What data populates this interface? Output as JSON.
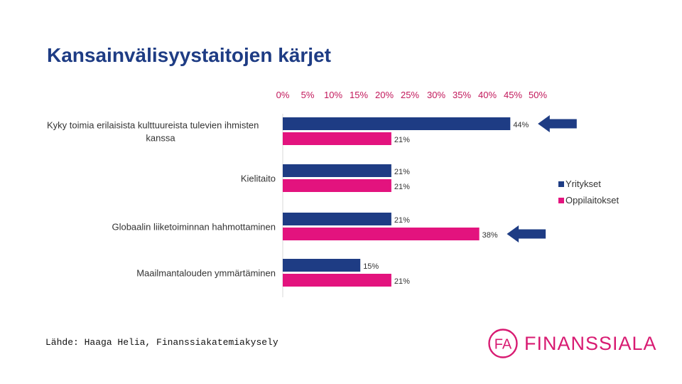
{
  "title": "Kansainvälisyystaitojen kärjet",
  "source": "Lähde: Haaga Helia, Finanssiakatemiakysely",
  "brand": {
    "name": "FINANSSIALA",
    "mark_letters": "FA"
  },
  "colors": {
    "yritykset": "#1e3c84",
    "oppilaitokset": "#e3137e",
    "title": "#1e3c84",
    "axis_text": "#c2185b",
    "arrow": "#1e3c84"
  },
  "chart_data": {
    "type": "bar",
    "orientation": "horizontal",
    "categories": [
      "Kyky toimia erilaisista kulttuureista tulevien ihmisten kanssa",
      "Kielitaito",
      "Globaalin liiketoiminnan hahmottaminen",
      "Maailmantalouden ymmärtäminen"
    ],
    "series": [
      {
        "name": "Yritykset",
        "values": [
          44,
          21,
          21,
          15
        ],
        "labels": [
          "44%",
          "21%",
          "21%",
          "15%"
        ]
      },
      {
        "name": "Oppilaitokset",
        "values": [
          21,
          21,
          38,
          21
        ],
        "labels": [
          "21%",
          "21%",
          "38%",
          "21%"
        ]
      }
    ],
    "xlim": [
      0,
      50
    ],
    "ticks": [
      "0%",
      "5%",
      "10%",
      "15%",
      "20%",
      "25%",
      "30%",
      "35%",
      "40%",
      "45%",
      "50%"
    ],
    "tick_values": [
      0,
      5,
      10,
      15,
      20,
      25,
      30,
      35,
      40,
      45,
      50
    ],
    "legend": [
      "Yritykset",
      "Oppilaitokset"
    ],
    "legend_position": "right",
    "highlighted_bars": [
      {
        "category": "Kyky toimia erilaisista kulttuureista tulevien ihmisten kanssa",
        "series": "Yritykset"
      },
      {
        "category": "Globaalin liiketoiminnan hahmottaminen",
        "series": "Oppilaitokset"
      }
    ]
  }
}
